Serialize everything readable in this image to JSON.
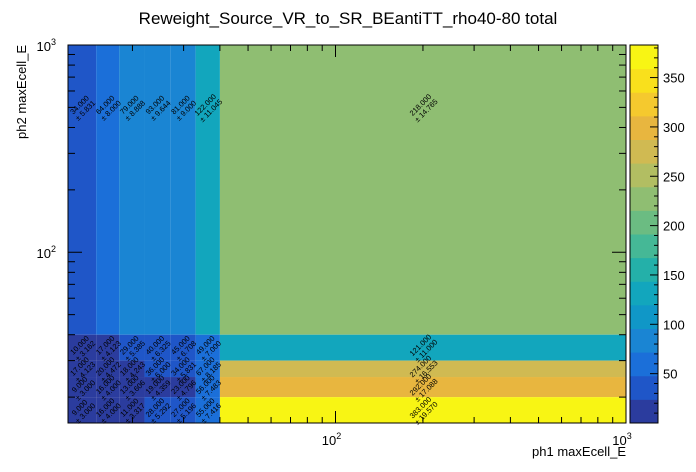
{
  "chart_data": {
    "type": "heatmap",
    "title": "Reweight_Source_VR_to_SR_BEantiTT_rho40-80 total",
    "xlabel": "ph1 maxEcell_E",
    "ylabel": "ph2 maxEcell_E",
    "x_scale": "log",
    "y_scale": "log",
    "xlim": [
      12,
      1000
    ],
    "ylim": [
      15,
      1000
    ],
    "x_ticks": [
      {
        "value": 100,
        "base": "10",
        "exp": "2"
      },
      {
        "value": 1000,
        "base": "10",
        "exp": "3"
      }
    ],
    "y_ticks": [
      {
        "value": 100,
        "base": "10",
        "exp": "2"
      },
      {
        "value": 1000,
        "base": "10",
        "exp": "3"
      }
    ],
    "x_edges": [
      12,
      15,
      18,
      22,
      27,
      33,
      40,
      1000
    ],
    "y_edges": [
      15,
      20,
      25,
      30,
      40,
      1000
    ],
    "cells": [
      {
        "xi": 6,
        "yi": 4,
        "value": 218,
        "label": "218.000",
        "error": "± 14.765"
      },
      {
        "xi": 6,
        "yi": 3,
        "value": 121,
        "label": "121.000",
        "error": "± 11.000"
      },
      {
        "xi": 6,
        "yi": 2,
        "value": 274,
        "label": "274.000",
        "error": "± 16.553"
      },
      {
        "xi": 6,
        "yi": 1,
        "value": 292,
        "label": "292.000",
        "error": "± 17.088"
      },
      {
        "xi": 6,
        "yi": 0,
        "value": 383,
        "label": "383.000",
        "error": "± 19.570"
      },
      {
        "xi": 0,
        "yi": 4,
        "value": 34,
        "label": "34.000",
        "error": "± 5.831"
      },
      {
        "xi": 1,
        "yi": 4,
        "value": 64,
        "label": "64.000",
        "error": "± 8.000"
      },
      {
        "xi": 2,
        "yi": 4,
        "value": 79,
        "label": "79.000",
        "error": "± 8.888"
      },
      {
        "xi": 3,
        "yi": 4,
        "value": 93,
        "label": "93.000",
        "error": "± 9.644"
      },
      {
        "xi": 4,
        "yi": 4,
        "value": 81,
        "label": "81.000",
        "error": "± 9.000"
      },
      {
        "xi": 5,
        "yi": 4,
        "value": 122,
        "label": "122.000",
        "error": "± 11.045"
      },
      {
        "xi": 0,
        "yi": 3,
        "value": 10,
        "label": "10.000",
        "error": "± 3.162"
      },
      {
        "xi": 1,
        "yi": 3,
        "value": 17,
        "label": "17.000",
        "error": "± 4.123"
      },
      {
        "xi": 2,
        "yi": 3,
        "value": 29,
        "label": "29.000",
        "error": "± 5.385"
      },
      {
        "xi": 3,
        "yi": 3,
        "value": 40,
        "label": "40.000",
        "error": "± 6.325"
      },
      {
        "xi": 4,
        "yi": 3,
        "value": 45,
        "label": "45.000",
        "error": "± 6.708"
      },
      {
        "xi": 5,
        "yi": 3,
        "value": 49,
        "label": "49.000",
        "error": "± 7.000"
      },
      {
        "xi": 0,
        "yi": 2,
        "value": 17,
        "label": "17.000",
        "error": "± 4.123"
      },
      {
        "xi": 1,
        "yi": 2,
        "value": 20,
        "label": "20.000",
        "error": "± 4.472"
      },
      {
        "xi": 2,
        "yi": 2,
        "value": 18,
        "label": "18.000",
        "error": "± 4.243"
      },
      {
        "xi": 3,
        "yi": 2,
        "value": 36,
        "label": "36.000",
        "error": "± 6.000"
      },
      {
        "xi": 4,
        "yi": 2,
        "value": 34,
        "label": "34.000",
        "error": "± 5.831"
      },
      {
        "xi": 5,
        "yi": 2,
        "value": 67,
        "label": "67.000",
        "error": "± 8.185"
      },
      {
        "xi": 0,
        "yi": 1,
        "value": 9,
        "label": "9.000",
        "error": "± 3.000"
      },
      {
        "xi": 1,
        "yi": 1,
        "value": 16,
        "label": "16.000",
        "error": "± 4.000"
      },
      {
        "xi": 2,
        "yi": 1,
        "value": 13,
        "label": "13.000",
        "error": "± 3.606"
      },
      {
        "xi": 3,
        "yi": 1,
        "value": 19,
        "label": "19.000",
        "error": "± 4.359"
      },
      {
        "xi": 4,
        "yi": 1,
        "value": 23,
        "label": "23.000",
        "error": "± 4.796"
      },
      {
        "xi": 5,
        "yi": 1,
        "value": 56,
        "label": "56.000",
        "error": "± 7.483"
      },
      {
        "xi": 0,
        "yi": 0,
        "value": 9,
        "label": "9.000",
        "error": "± 3.000"
      },
      {
        "xi": 1,
        "yi": 0,
        "value": 16,
        "label": "16.000",
        "error": "± 4.000"
      },
      {
        "xi": 2,
        "yi": 0,
        "value": 11,
        "label": "11.000",
        "error": "± 3.317"
      },
      {
        "xi": 3,
        "yi": 0,
        "value": 28,
        "label": "28.000",
        "error": "± 5.292"
      },
      {
        "xi": 4,
        "yi": 0,
        "value": 27,
        "label": "27.000",
        "error": "± 5.196"
      },
      {
        "xi": 5,
        "yi": 0,
        "value": 55,
        "label": "55.000",
        "error": "± 7.416"
      }
    ],
    "zlim": [
      0,
      383
    ],
    "z_ticks": [
      50,
      100,
      150,
      200,
      250,
      300,
      350
    ],
    "palette": [
      "#2b3c9e",
      "#1f56c8",
      "#1b6fd9",
      "#1a85d3",
      "#1097c7",
      "#12a6bd",
      "#24b0a9",
      "#45b896",
      "#6bbc82",
      "#8fbe72",
      "#b2be62",
      "#d0ba52",
      "#e8b63f",
      "#f5c92e",
      "#f9e01c",
      "#f8f514"
    ],
    "legend": "colorbar-right"
  }
}
